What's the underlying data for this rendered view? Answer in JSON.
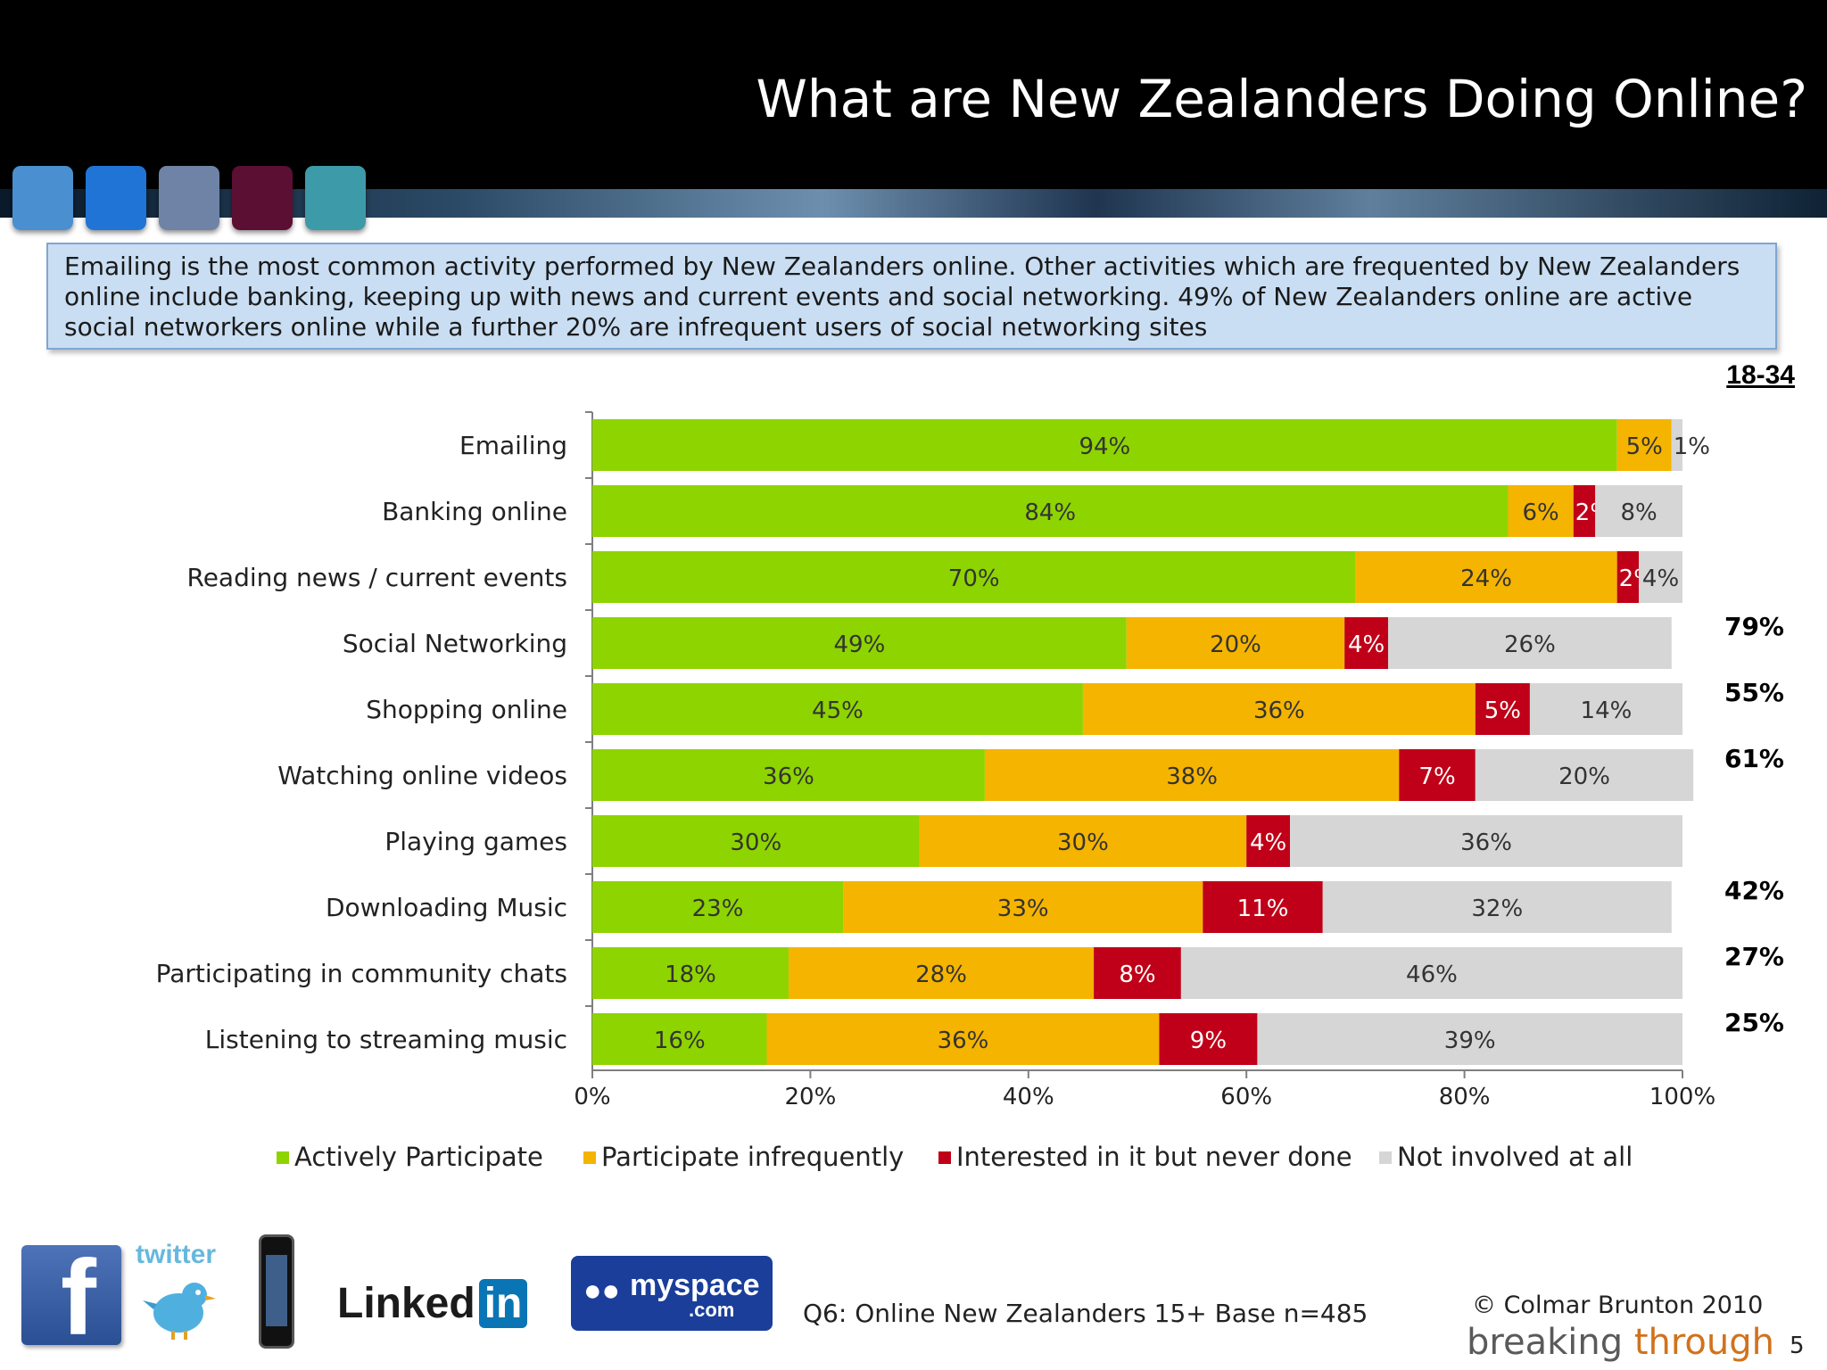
{
  "header": {
    "title": "What are New Zealanders Doing Online?",
    "tile_colors": [
      "#4a8fd0",
      "#1f74d6",
      "#6e83a6",
      "#5a0f33",
      "#3d9aa8"
    ]
  },
  "summary": "Emailing is the most common activity performed by New Zealanders online. Other activities which are frequented by New Zealanders online include banking, keeping up with news and current events and social networking. 49% of New Zealanders online are active social networkers online while a further 20% are infrequent users of social networking sites",
  "age_group_label": "18-34",
  "chart_data": {
    "type": "bar",
    "orientation": "horizontal",
    "stacked": true,
    "categories": [
      "Emailing",
      "Banking online",
      "Reading news / current events",
      "Social Networking",
      "Shopping online",
      "Watching online videos",
      "Playing games",
      "Downloading Music",
      "Participating in community chats",
      "Listening to streaming music"
    ],
    "series": [
      {
        "name": "Actively Participate",
        "color": "#8ed400",
        "values": [
          94,
          84,
          70,
          49,
          45,
          36,
          30,
          23,
          18,
          16
        ],
        "labels": [
          "94%",
          "84%",
          "70%",
          "49%",
          "45%",
          "36%",
          "30%",
          "23%",
          "18%",
          "16%"
        ]
      },
      {
        "name": "Participate infrequently",
        "color": "#f5b400",
        "values": [
          5,
          6,
          24,
          20,
          36,
          38,
          30,
          33,
          28,
          36
        ],
        "labels": [
          "5%",
          "6%",
          "24%",
          "20%",
          "36%",
          "38%",
          "30%",
          "33%",
          "28%",
          "36%"
        ]
      },
      {
        "name": "Interested in it but never done",
        "color": "#c00018",
        "values": [
          0,
          2,
          2,
          4,
          5,
          7,
          4,
          11,
          8,
          9
        ],
        "labels": [
          "",
          "2%",
          "2%",
          "4%",
          "5%",
          "7%",
          "4%",
          "11%",
          "8%",
          "9%"
        ]
      },
      {
        "name": "Not involved at all",
        "color": "#d6d6d6",
        "values": [
          1,
          8,
          4,
          26,
          14,
          20,
          36,
          32,
          46,
          39
        ],
        "labels": [
          "1%",
          "8%",
          "4%",
          "26%",
          "14%",
          "20%",
          "36%",
          "32%",
          "46%",
          "39%"
        ]
      }
    ],
    "xlim": [
      0,
      100
    ],
    "xticks": [
      "0%",
      "20%",
      "40%",
      "60%",
      "80%",
      "100%"
    ],
    "age_18_34_values": [
      "",
      "",
      "",
      "79%",
      "55%",
      "61%",
      "",
      "42%",
      "27%",
      "25%"
    ],
    "legend_position": "bottom"
  },
  "footer": {
    "twitter_text": "twitter",
    "linkedin_text": "Linked",
    "linkedin_in": "in",
    "myspace_text": "myspace",
    "myspace_com": ".com",
    "footnote": "Q6: Online New Zealanders 15+ Base n=485",
    "copyright": "© Colmar Brunton 2010",
    "brand_word1": "breaking",
    "brand_word2": "through",
    "page_number": "5"
  }
}
